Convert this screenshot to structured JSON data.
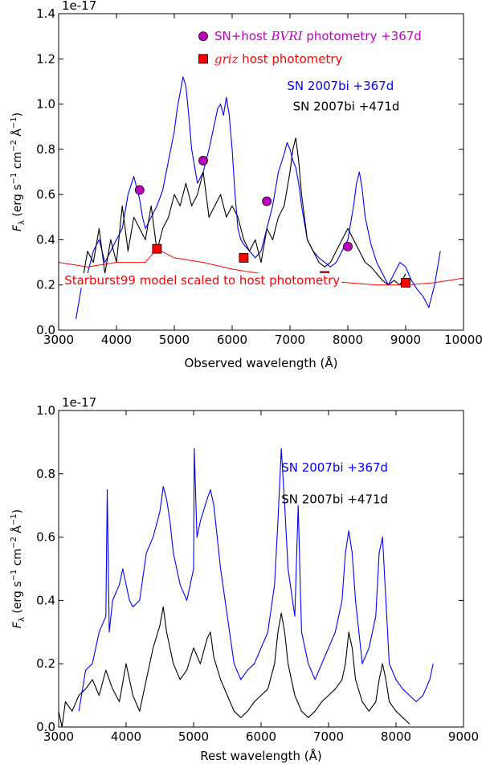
{
  "chart_data": [
    {
      "type": "line",
      "xlabel": "Observed wavelength (Å)",
      "ylabel": "F_λ (erg s^-1 cm^-2 Å^-1)",
      "offset_text": "1e-17",
      "xlim": [
        3000,
        10000
      ],
      "ylim": [
        0.0,
        1.4
      ],
      "xticks": [
        3000,
        4000,
        5000,
        6000,
        7000,
        8000,
        9000,
        10000
      ],
      "yticks": [
        0.0,
        0.2,
        0.4,
        0.6,
        0.8,
        1.0,
        1.2,
        1.4
      ],
      "grid": false,
      "series": [
        {
          "name": "SN 2007bi +367d",
          "color": "#0000ff",
          "x": [
            3300,
            3400,
            3500,
            3600,
            3700,
            3800,
            3900,
            4000,
            4100,
            4200,
            4300,
            4400,
            4450,
            4500,
            4600,
            4700,
            4800,
            4900,
            5000,
            5050,
            5100,
            5150,
            5200,
            5250,
            5300,
            5400,
            5500,
            5600,
            5700,
            5750,
            5800,
            5850,
            5900,
            5950,
            6000,
            6050,
            6100,
            6150,
            6200,
            6300,
            6400,
            6500,
            6600,
            6700,
            6800,
            6900,
            6950,
            7000,
            7050,
            7100,
            7150,
            7200,
            7300,
            7400,
            7500,
            7600,
            7700,
            7800,
            7900,
            8000,
            8100,
            8150,
            8200,
            8250,
            8300,
            8400,
            8500,
            8600,
            8700,
            8800,
            8900,
            9000,
            9100,
            9200,
            9300,
            9400,
            9500,
            9600
          ],
          "y": [
            0.05,
            0.2,
            0.25,
            0.35,
            0.4,
            0.3,
            0.35,
            0.4,
            0.45,
            0.6,
            0.68,
            0.58,
            0.5,
            0.45,
            0.5,
            0.55,
            0.62,
            0.75,
            0.88,
            0.98,
            1.05,
            1.12,
            1.08,
            0.95,
            0.8,
            0.65,
            0.7,
            0.8,
            0.92,
            0.98,
            1.0,
            0.95,
            1.03,
            0.95,
            0.8,
            0.6,
            0.45,
            0.4,
            0.38,
            0.35,
            0.32,
            0.35,
            0.45,
            0.55,
            0.7,
            0.78,
            0.83,
            0.8,
            0.75,
            0.72,
            0.65,
            0.55,
            0.4,
            0.35,
            0.32,
            0.3,
            0.28,
            0.3,
            0.35,
            0.4,
            0.55,
            0.65,
            0.7,
            0.62,
            0.5,
            0.38,
            0.3,
            0.25,
            0.2,
            0.25,
            0.3,
            0.28,
            0.22,
            0.18,
            0.15,
            0.1,
            0.2,
            0.35
          ]
        },
        {
          "name": "SN 2007bi +471d",
          "color": "#000000",
          "x": [
            3400,
            3500,
            3600,
            3700,
            3800,
            3900,
            4000,
            4100,
            4200,
            4300,
            4400,
            4500,
            4600,
            4700,
            4800,
            4900,
            5000,
            5100,
            5200,
            5300,
            5400,
            5500,
            5600,
            5700,
            5800,
            5900,
            6000,
            6100,
            6200,
            6300,
            6400,
            6500,
            6600,
            6700,
            6800,
            6900,
            7000,
            7050,
            7100,
            7150,
            7200,
            7300,
            7400,
            7500,
            7600,
            7700,
            7800,
            7900,
            8000,
            8100,
            8200,
            8300,
            8400,
            8500,
            8600,
            8700,
            8800,
            8900,
            9000
          ],
          "y": [
            0.2,
            0.35,
            0.3,
            0.45,
            0.25,
            0.4,
            0.3,
            0.55,
            0.35,
            0.5,
            0.45,
            0.4,
            0.55,
            0.35,
            0.45,
            0.5,
            0.6,
            0.55,
            0.65,
            0.55,
            0.6,
            0.7,
            0.5,
            0.55,
            0.6,
            0.5,
            0.55,
            0.5,
            0.4,
            0.35,
            0.4,
            0.3,
            0.45,
            0.4,
            0.5,
            0.55,
            0.7,
            0.8,
            0.85,
            0.75,
            0.6,
            0.4,
            0.35,
            0.3,
            0.28,
            0.3,
            0.35,
            0.4,
            0.45,
            0.4,
            0.35,
            0.3,
            0.28,
            0.25,
            0.22,
            0.2,
            0.22,
            0.2,
            0.25
          ]
        },
        {
          "name": "Starburst99 model scaled to host photometry",
          "color": "#ff0000",
          "x": [
            3000,
            3500,
            4000,
            4500,
            4700,
            5000,
            5500,
            6000,
            6500,
            7000,
            7500,
            8000,
            8500,
            9000,
            9500,
            10000
          ],
          "y": [
            0.3,
            0.28,
            0.3,
            0.3,
            0.36,
            0.32,
            0.3,
            0.27,
            0.25,
            0.23,
            0.22,
            0.21,
            0.2,
            0.2,
            0.21,
            0.23
          ]
        }
      ],
      "markers": [
        {
          "name": "SN+host BVRI photometry +367d",
          "color": "#bf00bf",
          "shape": "circle",
          "x": [
            4400,
            5500,
            6600,
            8000
          ],
          "y": [
            0.62,
            0.75,
            0.57,
            0.37
          ]
        },
        {
          "name": "griz host photometry",
          "color": "#ff0000",
          "shape": "square",
          "x": [
            4700,
            6200,
            7600,
            9000
          ],
          "y": [
            0.36,
            0.32,
            0.24,
            0.21
          ]
        }
      ],
      "annotations": [
        {
          "text_before": "SN+host ",
          "text_italic": "BVRI",
          "text_after": " photometry +367d",
          "color": "#bf00bf",
          "marker": "circle",
          "marker_color": "#bf00bf",
          "x": 5500,
          "y": 1.3
        },
        {
          "text_before": "",
          "text_italic": "griz",
          "text_after": " host photometry",
          "color": "#ff0000",
          "marker": "square",
          "marker_color": "#ff0000",
          "x": 5500,
          "y": 1.2
        },
        {
          "text_before": "SN 2007bi +367d",
          "text_italic": "",
          "text_after": "",
          "color": "#0000ff",
          "x": 6950,
          "y": 1.08
        },
        {
          "text_before": "SN 2007bi +471d",
          "text_italic": "",
          "text_after": "",
          "color": "#000000",
          "x": 7050,
          "y": 0.99
        },
        {
          "text_before": "Starburst99 model scaled to host photometry",
          "text_italic": "",
          "text_after": "",
          "color": "#ff0000",
          "x": 3100,
          "y": 0.22
        }
      ]
    },
    {
      "type": "line",
      "xlabel": "Rest wavelength (Å)",
      "ylabel": "F_λ (erg s^-1 cm^-2 Å^-1)",
      "offset_text": "1e-17",
      "xlim": [
        3000,
        9000
      ],
      "ylim": [
        0.0,
        1.0
      ],
      "xticks": [
        3000,
        4000,
        5000,
        6000,
        7000,
        8000,
        9000
      ],
      "yticks": [
        0.0,
        0.2,
        0.4,
        0.6,
        0.8,
        1.0
      ],
      "grid": false,
      "series": [
        {
          "name": "SN 2007bi +367d",
          "color": "#0000ff",
          "x": [
            3300,
            3400,
            3500,
            3600,
            3700,
            3720,
            3750,
            3800,
            3900,
            3950,
            4000,
            4050,
            4100,
            4200,
            4300,
            4400,
            4500,
            4550,
            4600,
            4650,
            4700,
            4800,
            4900,
            5000,
            5010,
            5050,
            5100,
            5200,
            5250,
            5300,
            5350,
            5400,
            5500,
            5600,
            5700,
            5800,
            5900,
            6000,
            6100,
            6200,
            6250,
            6300,
            6350,
            6400,
            6500,
            6550,
            6600,
            6700,
            6800,
            6900,
            7000,
            7100,
            7200,
            7250,
            7300,
            7350,
            7400,
            7500,
            7600,
            7700,
            7750,
            7800,
            7850,
            7900,
            8000,
            8100,
            8200,
            8300,
            8400,
            8500,
            8550
          ],
          "y": [
            0.05,
            0.18,
            0.2,
            0.3,
            0.35,
            0.75,
            0.3,
            0.4,
            0.45,
            0.5,
            0.45,
            0.4,
            0.38,
            0.4,
            0.55,
            0.6,
            0.68,
            0.76,
            0.72,
            0.65,
            0.55,
            0.45,
            0.4,
            0.5,
            0.88,
            0.6,
            0.65,
            0.72,
            0.75,
            0.7,
            0.6,
            0.5,
            0.35,
            0.2,
            0.15,
            0.18,
            0.2,
            0.25,
            0.3,
            0.45,
            0.65,
            0.88,
            0.7,
            0.5,
            0.35,
            0.7,
            0.3,
            0.2,
            0.15,
            0.2,
            0.25,
            0.3,
            0.4,
            0.55,
            0.62,
            0.55,
            0.4,
            0.2,
            0.25,
            0.35,
            0.55,
            0.6,
            0.4,
            0.2,
            0.15,
            0.12,
            0.1,
            0.08,
            0.1,
            0.15,
            0.2
          ]
        },
        {
          "name": "SN 2007bi +471d",
          "color": "#000000",
          "x": [
            3000,
            3050,
            3100,
            3200,
            3300,
            3400,
            3500,
            3600,
            3700,
            3800,
            3900,
            4000,
            4100,
            4200,
            4300,
            4400,
            4500,
            4550,
            4600,
            4700,
            4800,
            4900,
            5000,
            5100,
            5200,
            5250,
            5300,
            5400,
            5500,
            5600,
            5700,
            5800,
            5900,
            6000,
            6100,
            6200,
            6250,
            6300,
            6350,
            6400,
            6500,
            6600,
            6700,
            6800,
            6900,
            7000,
            7100,
            7200,
            7250,
            7300,
            7350,
            7400,
            7500,
            7600,
            7700,
            7750,
            7800,
            7850,
            7900,
            8000,
            8100,
            8200
          ],
          "y": [
            0.05,
            0.0,
            0.08,
            0.05,
            0.1,
            0.12,
            0.15,
            0.1,
            0.18,
            0.12,
            0.08,
            0.2,
            0.1,
            0.05,
            0.15,
            0.25,
            0.32,
            0.38,
            0.3,
            0.2,
            0.15,
            0.18,
            0.25,
            0.2,
            0.28,
            0.3,
            0.22,
            0.15,
            0.1,
            0.05,
            0.03,
            0.05,
            0.08,
            0.1,
            0.12,
            0.2,
            0.3,
            0.36,
            0.3,
            0.2,
            0.1,
            0.05,
            0.03,
            0.05,
            0.08,
            0.1,
            0.12,
            0.15,
            0.2,
            0.3,
            0.25,
            0.15,
            0.08,
            0.05,
            0.08,
            0.15,
            0.2,
            0.15,
            0.08,
            0.05,
            0.03,
            0.01
          ]
        }
      ],
      "annotations": [
        {
          "text_before": "SN 2007bi +367d",
          "text_italic": "",
          "text_after": "",
          "color": "#0000ff",
          "x": 6300,
          "y": 0.82
        },
        {
          "text_before": "SN 2007bi +471d",
          "text_italic": "",
          "text_after": "",
          "color": "#000000",
          "x": 6300,
          "y": 0.72
        }
      ]
    }
  ]
}
